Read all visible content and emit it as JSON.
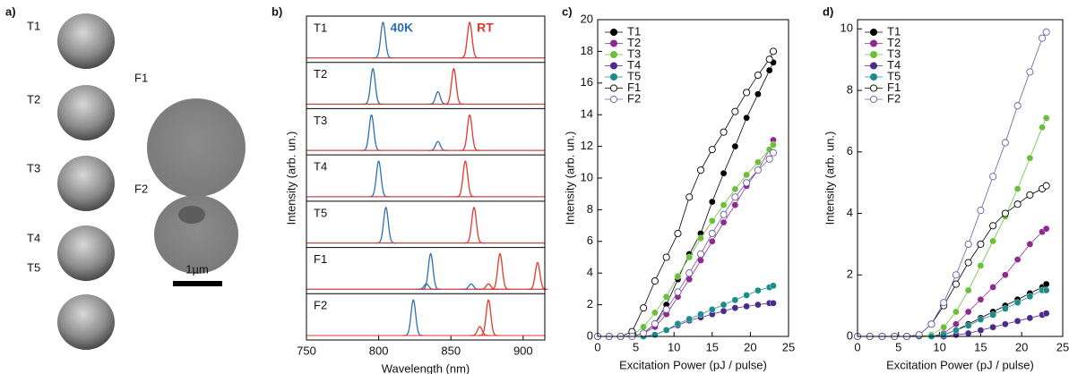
{
  "panel_a": {
    "label": "a)",
    "thumbnails": [
      "T1",
      "T2",
      "T3",
      "T4",
      "T5"
    ],
    "large": [
      "F1",
      "F2"
    ],
    "scale_bar": "1µm"
  },
  "chart_data": [
    {
      "type": "spectra",
      "label": "b)",
      "xlabel": "Wavelength (nm)",
      "ylabel": "Intensity (arb. un.)",
      "xlim": [
        750,
        915
      ],
      "xticks": [
        750,
        800,
        850,
        900
      ],
      "categories": [
        "T1",
        "T2",
        "T3",
        "T4",
        "T5",
        "F1",
        "F2"
      ],
      "series": [
        {
          "name": "40K",
          "color": "#2f6fb3",
          "values": [
            [
              {
                "x": 803,
                "y": 1
              }
            ],
            [
              {
                "x": 796,
                "y": 1
              },
              {
                "x": 841,
                "y": 0.35
              }
            ],
            [
              {
                "x": 795,
                "y": 1
              },
              {
                "x": 841,
                "y": 0.25
              }
            ],
            [
              {
                "x": 800,
                "y": 1
              }
            ],
            [
              {
                "x": 805,
                "y": 1
              }
            ],
            [
              {
                "x": 836,
                "y": 1
              },
              {
                "x": 833,
                "y": 0.15
              },
              {
                "x": 864,
                "y": 0.15
              }
            ],
            [
              {
                "x": 824,
                "y": 1
              }
            ]
          ]
        },
        {
          "name": "RT",
          "color": "#e0392b",
          "values": [
            [
              {
                "x": 863,
                "y": 1
              }
            ],
            [
              {
                "x": 852,
                "y": 1
              }
            ],
            [
              {
                "x": 863,
                "y": 1
              }
            ],
            [
              {
                "x": 860,
                "y": 1
              }
            ],
            [
              {
                "x": 866,
                "y": 1
              }
            ],
            [
              {
                "x": 884,
                "y": 1
              },
              {
                "x": 910,
                "y": 0.75
              },
              {
                "x": 876,
                "y": 0.15
              }
            ],
            [
              {
                "x": 876,
                "y": 1
              },
              {
                "x": 870,
                "y": 0.25
              }
            ]
          ]
        }
      ]
    },
    {
      "type": "line",
      "label": "c)",
      "xlabel": "Excitation Power (pJ / pulse)",
      "ylabel": "Intensity (arb. un.)",
      "xlim": [
        0,
        25
      ],
      "xticks": [
        0,
        5,
        10,
        15,
        20,
        25
      ],
      "ylim": [
        0,
        20
      ],
      "yticks": [
        0,
        2,
        4,
        6,
        8,
        10,
        12,
        14,
        16,
        18,
        20
      ],
      "x": [
        0,
        1.5,
        3,
        4.5,
        6,
        7.5,
        9,
        10.5,
        12,
        13.5,
        15,
        16.5,
        18,
        19.5,
        21,
        22.5,
        23
      ],
      "series": [
        {
          "name": "T1",
          "color": "#000000",
          "marker": "filled",
          "values": [
            0,
            0,
            0,
            0,
            0.2,
            0.8,
            2.0,
            3.6,
            5.2,
            6.5,
            8.5,
            10.3,
            12.0,
            13.8,
            15.3,
            16.8,
            17.3
          ]
        },
        {
          "name": "T2",
          "color": "#8e2a8f",
          "marker": "filled",
          "values": [
            0,
            0,
            0,
            0,
            0.2,
            0.6,
            1.4,
            2.5,
            3.6,
            4.8,
            6.0,
            7.2,
            8.3,
            9.5,
            10.5,
            11.8,
            12.4
          ]
        },
        {
          "name": "T3",
          "color": "#6cbf3a",
          "marker": "filled",
          "values": [
            0,
            0,
            0,
            0.05,
            0.6,
            1.5,
            2.5,
            3.8,
            5.0,
            6.2,
            7.3,
            8.3,
            9.3,
            10.2,
            11.0,
            11.8,
            12.1
          ]
        },
        {
          "name": "T4",
          "color": "#4a2b8c",
          "marker": "filled",
          "values": [
            0,
            0,
            0,
            0,
            0,
            0.1,
            0.4,
            0.7,
            1.0,
            1.2,
            1.4,
            1.6,
            1.8,
            1.9,
            2.0,
            2.1,
            2.1
          ]
        },
        {
          "name": "T5",
          "color": "#1b8c8a",
          "marker": "filled",
          "values": [
            0,
            0,
            0,
            0,
            0,
            0.1,
            0.4,
            0.8,
            1.1,
            1.4,
            1.7,
            2.0,
            2.3,
            2.6,
            2.9,
            3.1,
            3.2
          ]
        },
        {
          "name": "F1",
          "color": "#000000",
          "marker": "open",
          "values": [
            0,
            0,
            0,
            0.3,
            1.8,
            3.5,
            5.0,
            6.5,
            8.8,
            10.5,
            11.8,
            12.9,
            14.2,
            15.4,
            16.5,
            17.5,
            18.0
          ]
        },
        {
          "name": "F2",
          "color": "#6a5aa8",
          "marker": "open",
          "values": [
            0,
            0,
            0,
            0,
            0.2,
            0.8,
            1.7,
            2.8,
            4.0,
            5.2,
            6.5,
            7.7,
            8.8,
            9.7,
            10.5,
            11.2,
            11.6
          ]
        }
      ]
    },
    {
      "type": "line",
      "label": "d)",
      "xlabel": "Excitation Power (pJ / pulse)",
      "ylabel": "Intensity (arb. un.)",
      "xlim": [
        0,
        25
      ],
      "xticks": [
        0,
        5,
        10,
        15,
        20,
        25
      ],
      "ylim": [
        0,
        10.3
      ],
      "yticks": [
        0,
        2,
        4,
        6,
        8,
        10
      ],
      "x": [
        0,
        1.5,
        3,
        4.5,
        6,
        7.5,
        9,
        10.5,
        12,
        13.5,
        15,
        16.5,
        18,
        19.5,
        21,
        22.5,
        23
      ],
      "series": [
        {
          "name": "T1",
          "color": "#000000",
          "marker": "filled",
          "values": [
            0,
            0,
            0,
            0,
            0,
            0,
            0,
            0.05,
            0.2,
            0.4,
            0.6,
            0.8,
            1.0,
            1.2,
            1.4,
            1.6,
            1.7
          ]
        },
        {
          "name": "T2",
          "color": "#8e2a8f",
          "marker": "filled",
          "values": [
            0,
            0,
            0,
            0,
            0,
            0,
            0,
            0.1,
            0.4,
            0.8,
            1.2,
            1.6,
            2.0,
            2.5,
            3.0,
            3.4,
            3.5
          ]
        },
        {
          "name": "T3",
          "color": "#6cbf3a",
          "marker": "filled",
          "values": [
            0,
            0,
            0,
            0,
            0,
            0,
            0.05,
            0.3,
            0.8,
            1.5,
            2.3,
            3.1,
            3.9,
            4.8,
            5.8,
            6.8,
            7.1
          ]
        },
        {
          "name": "T4",
          "color": "#4a2b8c",
          "marker": "filled",
          "values": [
            0,
            0,
            0,
            0,
            0,
            0,
            0,
            0,
            0.05,
            0.1,
            0.2,
            0.3,
            0.4,
            0.5,
            0.6,
            0.7,
            0.75
          ]
        },
        {
          "name": "T5",
          "color": "#1b8c8a",
          "marker": "filled",
          "values": [
            0,
            0,
            0,
            0,
            0,
            0,
            0,
            0.05,
            0.2,
            0.35,
            0.55,
            0.7,
            0.9,
            1.1,
            1.3,
            1.5,
            1.5
          ]
        },
        {
          "name": "F1",
          "color": "#000000",
          "marker": "open",
          "values": [
            0,
            0,
            0,
            0,
            0,
            0.05,
            0.4,
            1.0,
            1.7,
            2.4,
            3.0,
            3.6,
            4.0,
            4.3,
            4.6,
            4.8,
            4.9
          ]
        },
        {
          "name": "F2",
          "color": "#6a5aa8",
          "marker": "open",
          "values": [
            0,
            0,
            0,
            0,
            0,
            0.05,
            0.4,
            1.1,
            2.0,
            3.0,
            4.1,
            5.2,
            6.3,
            7.5,
            8.6,
            9.7,
            9.9
          ]
        }
      ]
    }
  ]
}
